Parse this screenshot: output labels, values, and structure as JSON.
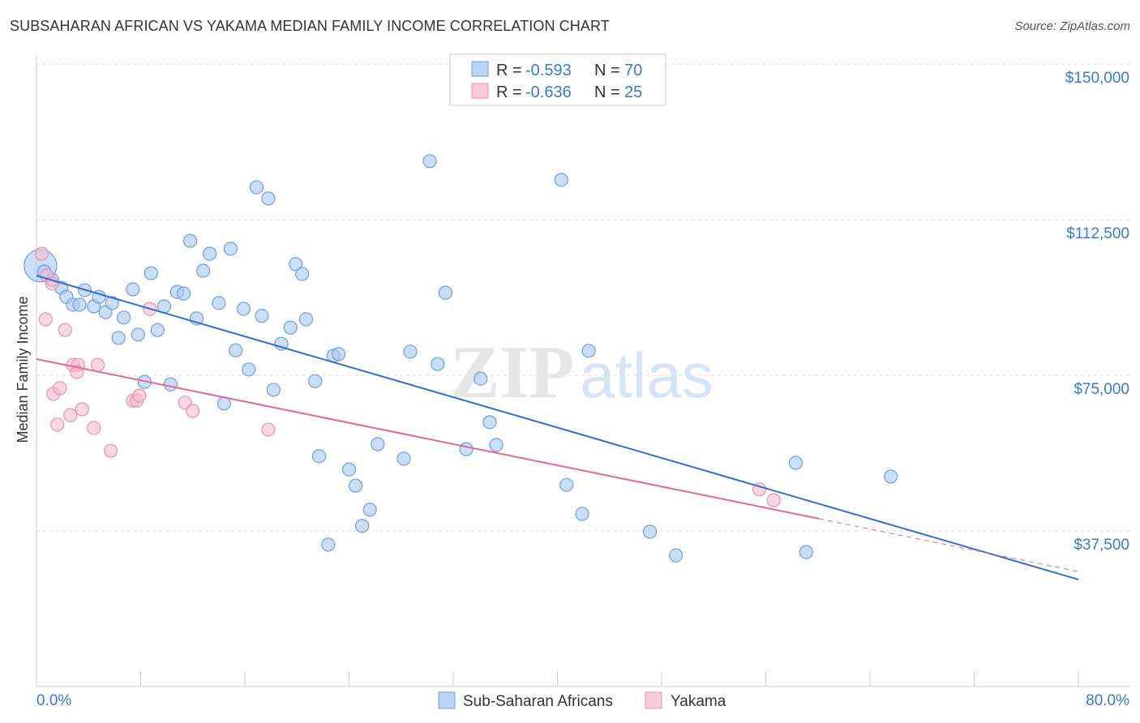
{
  "header": {
    "title": "SUBSAHARAN AFRICAN VS YAKAMA MEDIAN FAMILY INCOME CORRELATION CHART",
    "source": "Source: ZipAtlas.com"
  },
  "colors": {
    "blue_fill": "#a9c8f2",
    "blue_stroke": "#6e9fe0",
    "blue_line": "#2f6fd6",
    "pink_fill": "#f7bccd",
    "pink_stroke": "#ec8fae",
    "pink_line": "#e5698f",
    "accent_text": "#3a78d8"
  },
  "chart_data": {
    "type": "scatter",
    "title": "SUBSAHARAN AFRICAN VS YAKAMA MEDIAN FAMILY INCOME CORRELATION CHART",
    "xlabel": "",
    "ylabel": "Median Family Income",
    "xlim": [
      0,
      80
    ],
    "ylim": [
      0,
      156000
    ],
    "x_tick_labels": [
      "0.0%",
      "80.0%"
    ],
    "y_ticks": [
      37500,
      75000,
      112500,
      150000
    ],
    "y_tick_labels": [
      "$37,500",
      "$75,000",
      "$112,500",
      "$150,000"
    ],
    "grid": true,
    "watermark": "ZIPatlas",
    "legend": {
      "placement": "top-center",
      "entries": [
        {
          "r_label": "R =",
          "r": "-0.593",
          "n_label": "N =",
          "n": "70"
        },
        {
          "r_label": "R =",
          "r": "-0.636",
          "n_label": "N =",
          "n": "25"
        }
      ]
    },
    "series": [
      {
        "name": "Sub-Saharan Africans",
        "trend": {
          "x": [
            0,
            80
          ],
          "y": [
            99000,
            25800
          ],
          "solid_to": 80
        },
        "points": [
          [
            0.3,
            101400,
            "L"
          ],
          [
            0.6,
            100000
          ],
          [
            1.2,
            98000
          ],
          [
            1.9,
            96100
          ],
          [
            2.3,
            93900
          ],
          [
            2.8,
            92000
          ],
          [
            3.3,
            92000
          ],
          [
            3.7,
            95500
          ],
          [
            4.4,
            91600
          ],
          [
            4.8,
            93900
          ],
          [
            5.3,
            90200
          ],
          [
            5.8,
            92400
          ],
          [
            6.3,
            84000
          ],
          [
            6.7,
            88900
          ],
          [
            7.4,
            95700
          ],
          [
            7.8,
            84800
          ],
          [
            8.3,
            73400
          ],
          [
            8.8,
            99600
          ],
          [
            9.3,
            85900
          ],
          [
            9.8,
            91600
          ],
          [
            10.3,
            72800
          ],
          [
            10.8,
            95100
          ],
          [
            11.3,
            94700
          ],
          [
            11.8,
            107400
          ],
          [
            12.3,
            88700
          ],
          [
            12.8,
            100200
          ],
          [
            13.3,
            104300
          ],
          [
            14.0,
            92400
          ],
          [
            14.4,
            68200
          ],
          [
            14.9,
            105500
          ],
          [
            15.3,
            81000
          ],
          [
            15.9,
            91000
          ],
          [
            16.3,
            76400
          ],
          [
            16.9,
            120300
          ],
          [
            17.3,
            89300
          ],
          [
            17.8,
            117600
          ],
          [
            18.2,
            71500
          ],
          [
            18.8,
            82600
          ],
          [
            19.5,
            86500
          ],
          [
            19.9,
            101800
          ],
          [
            20.4,
            99400
          ],
          [
            20.7,
            88500
          ],
          [
            21.4,
            73600
          ],
          [
            21.7,
            55500
          ],
          [
            22.4,
            34200
          ],
          [
            22.8,
            79700
          ],
          [
            23.2,
            80100
          ],
          [
            24.0,
            52300
          ],
          [
            24.5,
            48400
          ],
          [
            25.0,
            38700
          ],
          [
            25.6,
            42600
          ],
          [
            26.2,
            58400
          ],
          [
            28.2,
            54900
          ],
          [
            28.7,
            80700
          ],
          [
            30.2,
            126600
          ],
          [
            30.8,
            77700
          ],
          [
            31.4,
            94900
          ],
          [
            33.0,
            57200
          ],
          [
            34.1,
            74200
          ],
          [
            34.8,
            63700
          ],
          [
            35.3,
            58200
          ],
          [
            40.3,
            122100
          ],
          [
            40.7,
            48600
          ],
          [
            41.9,
            41600
          ],
          [
            42.4,
            80900
          ],
          [
            47.1,
            37300
          ],
          [
            49.1,
            31600
          ],
          [
            58.3,
            53900
          ],
          [
            59.1,
            32400
          ],
          [
            65.6,
            50600
          ]
        ]
      },
      {
        "name": "Yakama",
        "trend": {
          "x": [
            0,
            80
          ],
          "y": [
            78900,
            27700
          ],
          "solid_to": 60.1
        },
        "points": [
          [
            0.4,
            104300
          ],
          [
            0.8,
            99000
          ],
          [
            1.2,
            97100
          ],
          [
            0.7,
            88500
          ],
          [
            2.2,
            85900
          ],
          [
            1.3,
            70500
          ],
          [
            1.8,
            71900
          ],
          [
            1.6,
            63100
          ],
          [
            2.6,
            65400
          ],
          [
            2.8,
            77500
          ],
          [
            3.2,
            77500
          ],
          [
            3.1,
            75800
          ],
          [
            3.5,
            66800
          ],
          [
            4.4,
            62300
          ],
          [
            4.7,
            77500
          ],
          [
            5.7,
            56800
          ],
          [
            7.4,
            68900
          ],
          [
            7.7,
            68900
          ],
          [
            7.9,
            70100
          ],
          [
            8.7,
            91000
          ],
          [
            11.4,
            68400
          ],
          [
            12.0,
            66400
          ],
          [
            17.8,
            61900
          ],
          [
            55.5,
            47500
          ],
          [
            56.6,
            44900
          ]
        ]
      }
    ]
  }
}
